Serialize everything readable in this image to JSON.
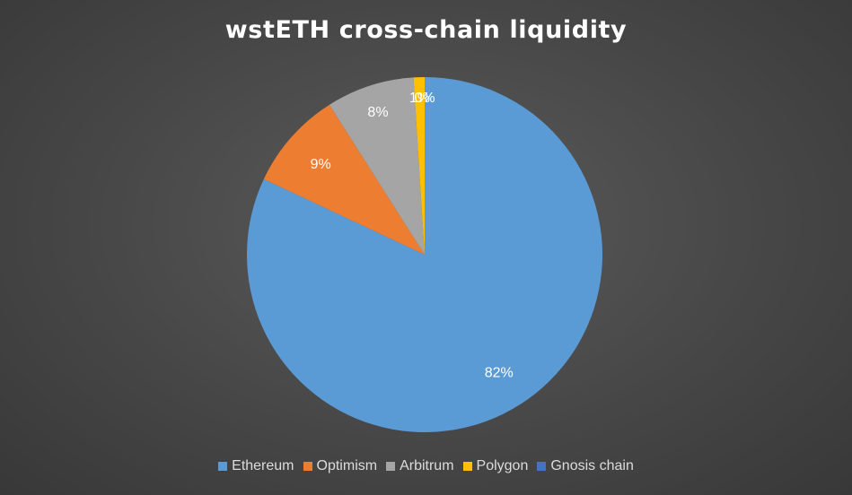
{
  "chart_data": {
    "type": "pie",
    "title": "wstETH cross-chain liquidity",
    "slices": [
      {
        "label": "Ethereum",
        "value": 82,
        "display": "82%",
        "color": "#5b9bd5"
      },
      {
        "label": "Optimism",
        "value": 9,
        "display": "9%",
        "color": "#ed7d31"
      },
      {
        "label": "Arbitrum",
        "value": 8,
        "display": "8%",
        "color": "#a5a5a5"
      },
      {
        "label": "Polygon",
        "value": 1,
        "display": "1%",
        "color": "#ffc000"
      },
      {
        "label": "Gnosis chain",
        "value": 0,
        "display": "0%",
        "color": "#4472c4"
      }
    ],
    "legend_position": "bottom",
    "start_angle_deg": 0,
    "direction": "clockwise"
  }
}
